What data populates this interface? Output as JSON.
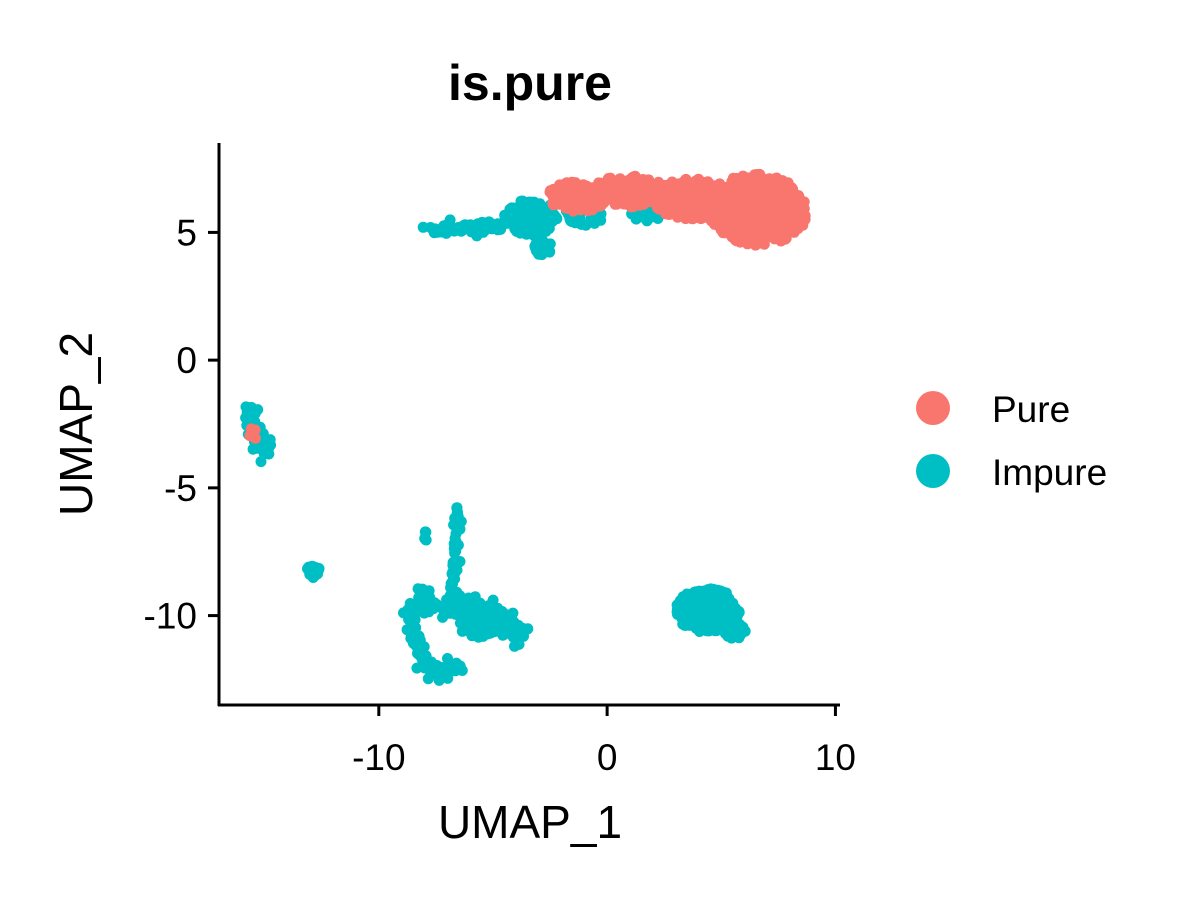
{
  "chart_data": {
    "type": "scatter",
    "title": "is.pure",
    "xlabel": "UMAP_1",
    "ylabel": "UMAP_2",
    "xlim": [
      -17,
      10.2
    ],
    "ylim": [
      -13.5,
      8.5
    ],
    "x_ticks": [
      -10,
      0,
      10
    ],
    "x_tick_labels": [
      "-10",
      "0",
      "10"
    ],
    "y_ticks": [
      5,
      0,
      -5,
      -10
    ],
    "y_tick_labels": [
      "5",
      "0",
      "-5",
      "-10"
    ],
    "grid": false,
    "legend_position": "right",
    "series": [
      {
        "name": "Pure",
        "color": "#F8766D",
        "clusters": [
          {
            "type": "blob",
            "cx": 6.6,
            "cy": 5.9,
            "rx": 2.2,
            "ry": 1.4,
            "n": 420
          },
          {
            "type": "blob",
            "cx": 3.8,
            "cy": 6.3,
            "rx": 1.8,
            "ry": 0.8,
            "n": 260
          },
          {
            "type": "blob",
            "cx": 1.0,
            "cy": 6.6,
            "rx": 1.8,
            "ry": 0.6,
            "n": 200
          },
          {
            "type": "blob",
            "cx": -1.3,
            "cy": 6.4,
            "rx": 1.3,
            "ry": 0.6,
            "n": 120
          },
          {
            "type": "blob",
            "cx": -15.5,
            "cy": -2.9,
            "rx": 0.2,
            "ry": 0.25,
            "n": 6
          }
        ]
      },
      {
        "name": "Impure",
        "color": "#00BFC4",
        "clusters": [
          {
            "type": "path",
            "points": [
              [
                -7.8,
                5.1
              ],
              [
                -6.0,
                5.15
              ],
              [
                -4.6,
                5.3
              ]
            ],
            "spread": 0.12,
            "n": 70
          },
          {
            "type": "blob",
            "cx": -3.3,
            "cy": 5.6,
            "rx": 1.2,
            "ry": 0.7,
            "n": 130
          },
          {
            "type": "blob",
            "cx": -2.8,
            "cy": 4.4,
            "rx": 0.4,
            "ry": 0.3,
            "n": 30
          },
          {
            "type": "blob",
            "cx": -1.0,
            "cy": 5.7,
            "rx": 0.9,
            "ry": 0.45,
            "n": 35
          },
          {
            "type": "blob",
            "cx": 1.7,
            "cy": 5.7,
            "rx": 0.7,
            "ry": 0.25,
            "n": 20
          },
          {
            "type": "blob",
            "cx": 4.4,
            "cy": -9.8,
            "rx": 1.4,
            "ry": 0.85,
            "n": 320
          },
          {
            "type": "blob",
            "cx": 5.6,
            "cy": -10.6,
            "rx": 0.45,
            "ry": 0.3,
            "n": 40
          },
          {
            "type": "path",
            "points": [
              [
                -15.7,
                -1.8
              ],
              [
                -15.5,
                -2.6
              ],
              [
                -15.3,
                -3.4
              ],
              [
                -14.8,
                -3.3
              ]
            ],
            "spread": 0.18,
            "n": 60
          },
          {
            "type": "blob",
            "cx": -12.9,
            "cy": -8.3,
            "rx": 0.35,
            "ry": 0.25,
            "n": 25
          },
          {
            "type": "blob",
            "cx": -7.9,
            "cy": -6.9,
            "rx": 0.15,
            "ry": 0.2,
            "n": 6
          },
          {
            "type": "path",
            "points": [
              [
                -6.5,
                -5.6
              ],
              [
                -6.6,
                -7.0
              ],
              [
                -6.7,
                -8.6
              ],
              [
                -6.6,
                -9.6
              ]
            ],
            "spread": 0.12,
            "n": 45
          },
          {
            "type": "path",
            "points": [
              [
                -8.7,
                -9.7
              ],
              [
                -7.5,
                -9.6
              ],
              [
                -6.2,
                -9.7
              ],
              [
                -5.0,
                -9.9
              ],
              [
                -4.2,
                -10.5
              ],
              [
                -3.8,
                -10.7
              ]
            ],
            "spread": 0.22,
            "n": 150
          },
          {
            "type": "path",
            "points": [
              [
                -8.6,
                -9.9
              ],
              [
                -8.4,
                -11.0
              ],
              [
                -7.9,
                -12.0
              ],
              [
                -7.2,
                -12.4
              ],
              [
                -6.6,
                -12.0
              ]
            ],
            "spread": 0.18,
            "n": 60
          },
          {
            "type": "blob",
            "cx": -5.7,
            "cy": -10.5,
            "rx": 0.9,
            "ry": 0.35,
            "n": 50
          }
        ]
      }
    ]
  }
}
